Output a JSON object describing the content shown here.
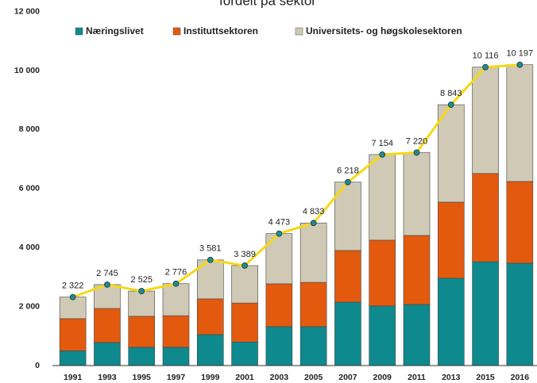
{
  "chart_data": {
    "type": "stacked-bar-line",
    "title": "fordelt på sektor",
    "categories": [
      "1991",
      "1993",
      "1995",
      "1997",
      "1999",
      "2001",
      "2003",
      "2005",
      "2007",
      "2009",
      "2011",
      "2013",
      "2015",
      "2016"
    ],
    "series": [
      {
        "name": "Næringslivet",
        "color": "#0e8a8e",
        "values": [
          500,
          780,
          620,
          620,
          1050,
          800,
          1320,
          1320,
          2150,
          2020,
          2070,
          2960,
          3520,
          3470
        ]
      },
      {
        "name": "Instituttsektoren",
        "color": "#e35a0f",
        "values": [
          1090,
          1155,
          1050,
          1070,
          1210,
          1320,
          1450,
          1500,
          1750,
          2230,
          2340,
          2580,
          2990,
          2770
        ]
      },
      {
        "name": "Universitets- og høgskolesektoren",
        "color": "#cfc9b5",
        "values": [
          732,
          810,
          855,
          1086,
          1321,
          1269,
          1703,
          2013,
          2318,
          2904,
          2810,
          3303,
          3606,
          3957
        ]
      }
    ],
    "totals": {
      "color": "#f5d816",
      "marker_color": "#1e8c8c",
      "values": [
        2322,
        2745,
        2525,
        2776,
        3581,
        3389,
        4473,
        4833,
        6218,
        7154,
        7220,
        8843,
        10116,
        10197
      ],
      "value_labels": [
        "2 322",
        "2 745",
        "2 525",
        "2 776",
        "3 581",
        "3 389",
        "4 473",
        "4 833",
        "6 218",
        "7 154",
        "7 220",
        "8 843",
        "10 116",
        "10 197"
      ]
    },
    "ylim": [
      0,
      12000
    ],
    "yticks": [
      0,
      {
        "value": 2000,
        "label": "2 000"
      },
      {
        "value": 4000,
        "label": "4 000"
      },
      {
        "value": 6000,
        "label": "6 000"
      },
      {
        "value": 8000,
        "label": "8 000"
      },
      {
        "value": 10000,
        "label": "10 000"
      },
      {
        "value": 12000,
        "label": "12 000"
      }
    ],
    "grid": false
  }
}
